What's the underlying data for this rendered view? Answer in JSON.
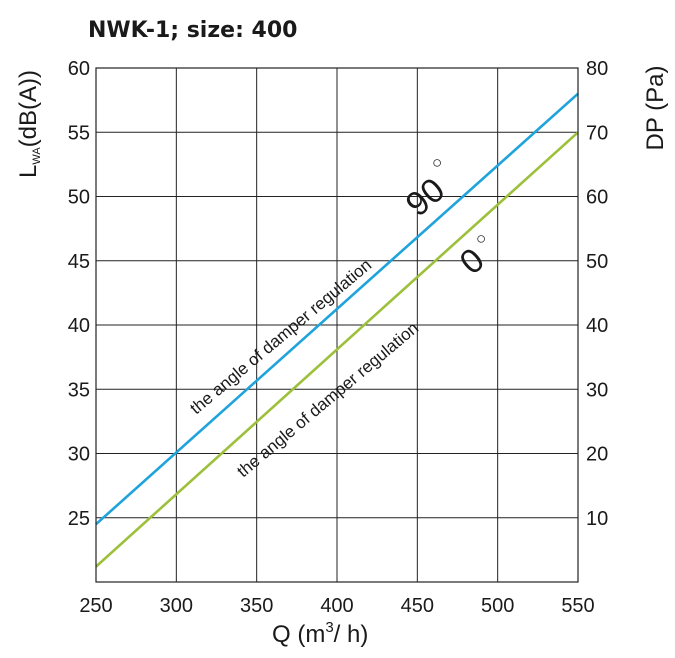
{
  "chart_data": {
    "type": "line",
    "title": "NWK-1;  size: 400",
    "xlabel": {
      "main": "Q (m",
      "sup": "3",
      "rest": "/ h)"
    },
    "ylabel_left": {
      "main": "L",
      "sub": "WA",
      "rest": "(dB(A))"
    },
    "ylabel_right": "DP (Pa)",
    "x_ticks": [
      "250",
      "300",
      "350",
      "400",
      "450",
      "500",
      "550"
    ],
    "y_left_ticks": [
      "25",
      "30",
      "35",
      "40",
      "45",
      "50",
      "55",
      "60"
    ],
    "y_right_ticks": [
      "10",
      "20",
      "30",
      "40",
      "50",
      "60",
      "70",
      "80"
    ],
    "xlim": [
      250,
      550
    ],
    "ylim_left": [
      20,
      60
    ],
    "ylim_right": [
      0,
      80
    ],
    "grid": true,
    "series": [
      {
        "label": "the angle of damper regulation",
        "angle": "90",
        "degree": "○",
        "color": "#1ea3dc",
        "x": [
          250,
          550
        ],
        "y": [
          24.5,
          58
        ]
      },
      {
        "label": "the angle of damper regulation",
        "angle": "0",
        "degree": "○",
        "color": "#9dc03a",
        "x": [
          250,
          550
        ],
        "y": [
          21.2,
          55
        ]
      }
    ]
  }
}
